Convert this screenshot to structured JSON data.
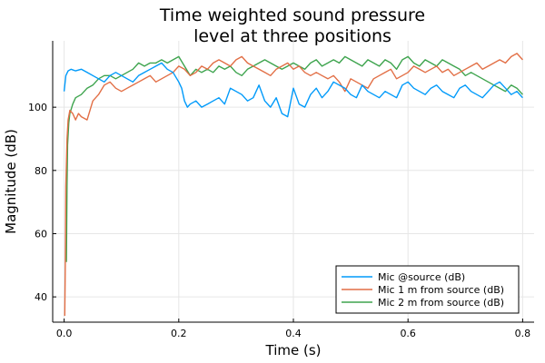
{
  "chart_data": {
    "type": "line",
    "title_lines": [
      "Time weighted sound pressure",
      "level at three positions"
    ],
    "xlabel": "Time (s)",
    "ylabel": "Magnitude (dB)",
    "xlim": [
      -0.02,
      0.82
    ],
    "ylim": [
      32,
      121
    ],
    "xticks": [
      0.0,
      0.2,
      0.4,
      0.6,
      0.8
    ],
    "xtick_labels": [
      "0.0",
      "0.2",
      "0.4",
      "0.6",
      "0.8"
    ],
    "yticks": [
      40,
      60,
      80,
      100
    ],
    "ytick_labels": [
      "40",
      "60",
      "80",
      "100"
    ],
    "grid": true,
    "legend_position": "bottom-right",
    "series": [
      {
        "name": "Mic @source (dB)",
        "color": "#009AFA",
        "x": [
          0.0,
          0.003,
          0.007,
          0.012,
          0.02,
          0.03,
          0.04,
          0.05,
          0.06,
          0.07,
          0.08,
          0.09,
          0.1,
          0.11,
          0.12,
          0.13,
          0.14,
          0.15,
          0.16,
          0.17,
          0.18,
          0.19,
          0.2,
          0.205,
          0.21,
          0.215,
          0.22,
          0.23,
          0.24,
          0.25,
          0.26,
          0.27,
          0.28,
          0.29,
          0.3,
          0.31,
          0.32,
          0.33,
          0.34,
          0.35,
          0.36,
          0.37,
          0.38,
          0.39,
          0.4,
          0.41,
          0.42,
          0.43,
          0.44,
          0.45,
          0.46,
          0.47,
          0.48,
          0.49,
          0.5,
          0.51,
          0.52,
          0.53,
          0.54,
          0.55,
          0.56,
          0.57,
          0.58,
          0.59,
          0.6,
          0.61,
          0.62,
          0.63,
          0.64,
          0.65,
          0.66,
          0.67,
          0.68,
          0.69,
          0.7,
          0.71,
          0.72,
          0.73,
          0.74,
          0.75,
          0.76,
          0.77,
          0.78,
          0.79,
          0.8
        ],
        "y": [
          105,
          110,
          111.5,
          112,
          111.5,
          112,
          111,
          110,
          109,
          108,
          110,
          111,
          110,
          109,
          108,
          110,
          111,
          112,
          113,
          114,
          112,
          111,
          108,
          106,
          102,
          100,
          101,
          102,
          100,
          101,
          102,
          103,
          101,
          106,
          105,
          104,
          102,
          103,
          107,
          102,
          100,
          103,
          98,
          97,
          106,
          101,
          100,
          104,
          106,
          103,
          105,
          108,
          107,
          106,
          104,
          103,
          107,
          105,
          104,
          103,
          105,
          104,
          103,
          107,
          108,
          106,
          105,
          104,
          106,
          107,
          105,
          104,
          103,
          106,
          107,
          105,
          104,
          103,
          105,
          107,
          108,
          106,
          104,
          105,
          103
        ]
      },
      {
        "name": "Mic 1 m from source (dB)",
        "color": "#E26F46",
        "x": [
          0.001,
          0.002,
          0.003,
          0.005,
          0.007,
          0.01,
          0.015,
          0.02,
          0.025,
          0.03,
          0.04,
          0.05,
          0.06,
          0.07,
          0.08,
          0.09,
          0.1,
          0.11,
          0.12,
          0.13,
          0.14,
          0.15,
          0.16,
          0.17,
          0.18,
          0.19,
          0.2,
          0.21,
          0.22,
          0.23,
          0.24,
          0.25,
          0.26,
          0.27,
          0.28,
          0.29,
          0.3,
          0.31,
          0.32,
          0.33,
          0.34,
          0.35,
          0.36,
          0.37,
          0.38,
          0.39,
          0.4,
          0.41,
          0.42,
          0.43,
          0.44,
          0.45,
          0.46,
          0.47,
          0.48,
          0.49,
          0.5,
          0.51,
          0.52,
          0.53,
          0.54,
          0.55,
          0.56,
          0.57,
          0.58,
          0.59,
          0.6,
          0.61,
          0.62,
          0.63,
          0.64,
          0.65,
          0.66,
          0.67,
          0.68,
          0.69,
          0.7,
          0.71,
          0.72,
          0.73,
          0.74,
          0.75,
          0.76,
          0.77,
          0.78,
          0.79,
          0.8
        ],
        "y": [
          34,
          50,
          75,
          90,
          96,
          99,
          98,
          96,
          98,
          97,
          96,
          102,
          104,
          107,
          108,
          106,
          105,
          106,
          107,
          108,
          109,
          110,
          108,
          109,
          110,
          111,
          113,
          112,
          110,
          111,
          113,
          112,
          114,
          115,
          114,
          113,
          115,
          116,
          114,
          113,
          112,
          111,
          110,
          112,
          113,
          114,
          112,
          113,
          111,
          110,
          111,
          110,
          109,
          110,
          108,
          105,
          109,
          108,
          107,
          106,
          109,
          110,
          111,
          112,
          109,
          110,
          111,
          113,
          112,
          111,
          112,
          113,
          111,
          112,
          110,
          111,
          112,
          113,
          114,
          112,
          113,
          114,
          115,
          114,
          116,
          117,
          115
        ]
      },
      {
        "name": "Mic 2 m from source (dB)",
        "color": "#3EA44E",
        "x": [
          0.004,
          0.005,
          0.006,
          0.008,
          0.01,
          0.015,
          0.02,
          0.03,
          0.04,
          0.05,
          0.06,
          0.07,
          0.08,
          0.09,
          0.1,
          0.11,
          0.12,
          0.13,
          0.14,
          0.15,
          0.16,
          0.17,
          0.18,
          0.19,
          0.2,
          0.21,
          0.22,
          0.23,
          0.24,
          0.25,
          0.26,
          0.27,
          0.28,
          0.29,
          0.3,
          0.31,
          0.32,
          0.33,
          0.34,
          0.35,
          0.36,
          0.37,
          0.38,
          0.39,
          0.4,
          0.41,
          0.42,
          0.43,
          0.44,
          0.45,
          0.46,
          0.47,
          0.48,
          0.49,
          0.5,
          0.51,
          0.52,
          0.53,
          0.54,
          0.55,
          0.56,
          0.57,
          0.58,
          0.59,
          0.6,
          0.61,
          0.62,
          0.63,
          0.64,
          0.65,
          0.66,
          0.67,
          0.68,
          0.69,
          0.7,
          0.71,
          0.72,
          0.73,
          0.74,
          0.75,
          0.76,
          0.77,
          0.78,
          0.79,
          0.8
        ],
        "y": [
          51,
          75,
          88,
          95,
          98,
          101,
          103,
          104,
          106,
          107,
          109,
          110,
          110,
          109,
          110,
          111,
          112,
          114,
          113,
          114,
          114,
          115,
          114,
          115,
          116,
          113,
          110,
          112,
          111,
          112,
          111,
          113,
          112,
          113,
          111,
          110,
          112,
          113,
          114,
          115,
          114,
          113,
          112,
          113,
          114,
          113,
          112,
          114,
          115,
          113,
          114,
          115,
          114,
          116,
          115,
          114,
          113,
          115,
          114,
          113,
          115,
          114,
          112,
          115,
          116,
          114,
          113,
          115,
          114,
          113,
          115,
          114,
          113,
          112,
          110,
          111,
          110,
          109,
          108,
          107,
          106,
          105,
          107,
          106,
          104
        ]
      }
    ]
  }
}
